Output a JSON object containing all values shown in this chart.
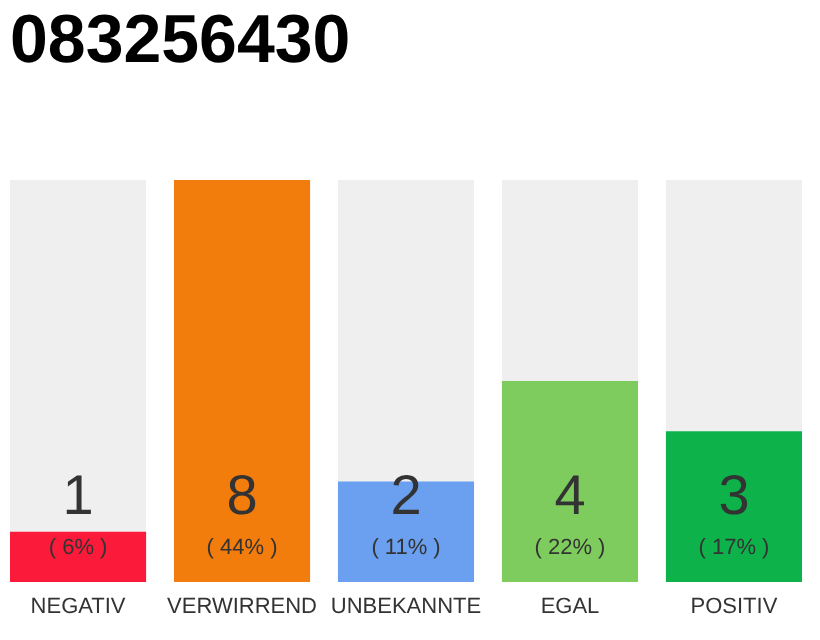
{
  "chart_data": {
    "type": "bar",
    "title": "083256430",
    "categories": [
      "NEGATIV",
      "VERWIRREND",
      "UNBEKANNTE",
      "EGAL",
      "POSITIV"
    ],
    "values": [
      1,
      8,
      2,
      4,
      3
    ],
    "colors": [
      "#fc1a3b",
      "#f27c0c",
      "#6aa0ef",
      "#7dcc5d",
      "#0db34a"
    ],
    "data_labels": true,
    "annotations": [
      "( 6% )",
      "( 44% )",
      "( 11% )",
      "( 22% )",
      "( 17% )"
    ]
  }
}
